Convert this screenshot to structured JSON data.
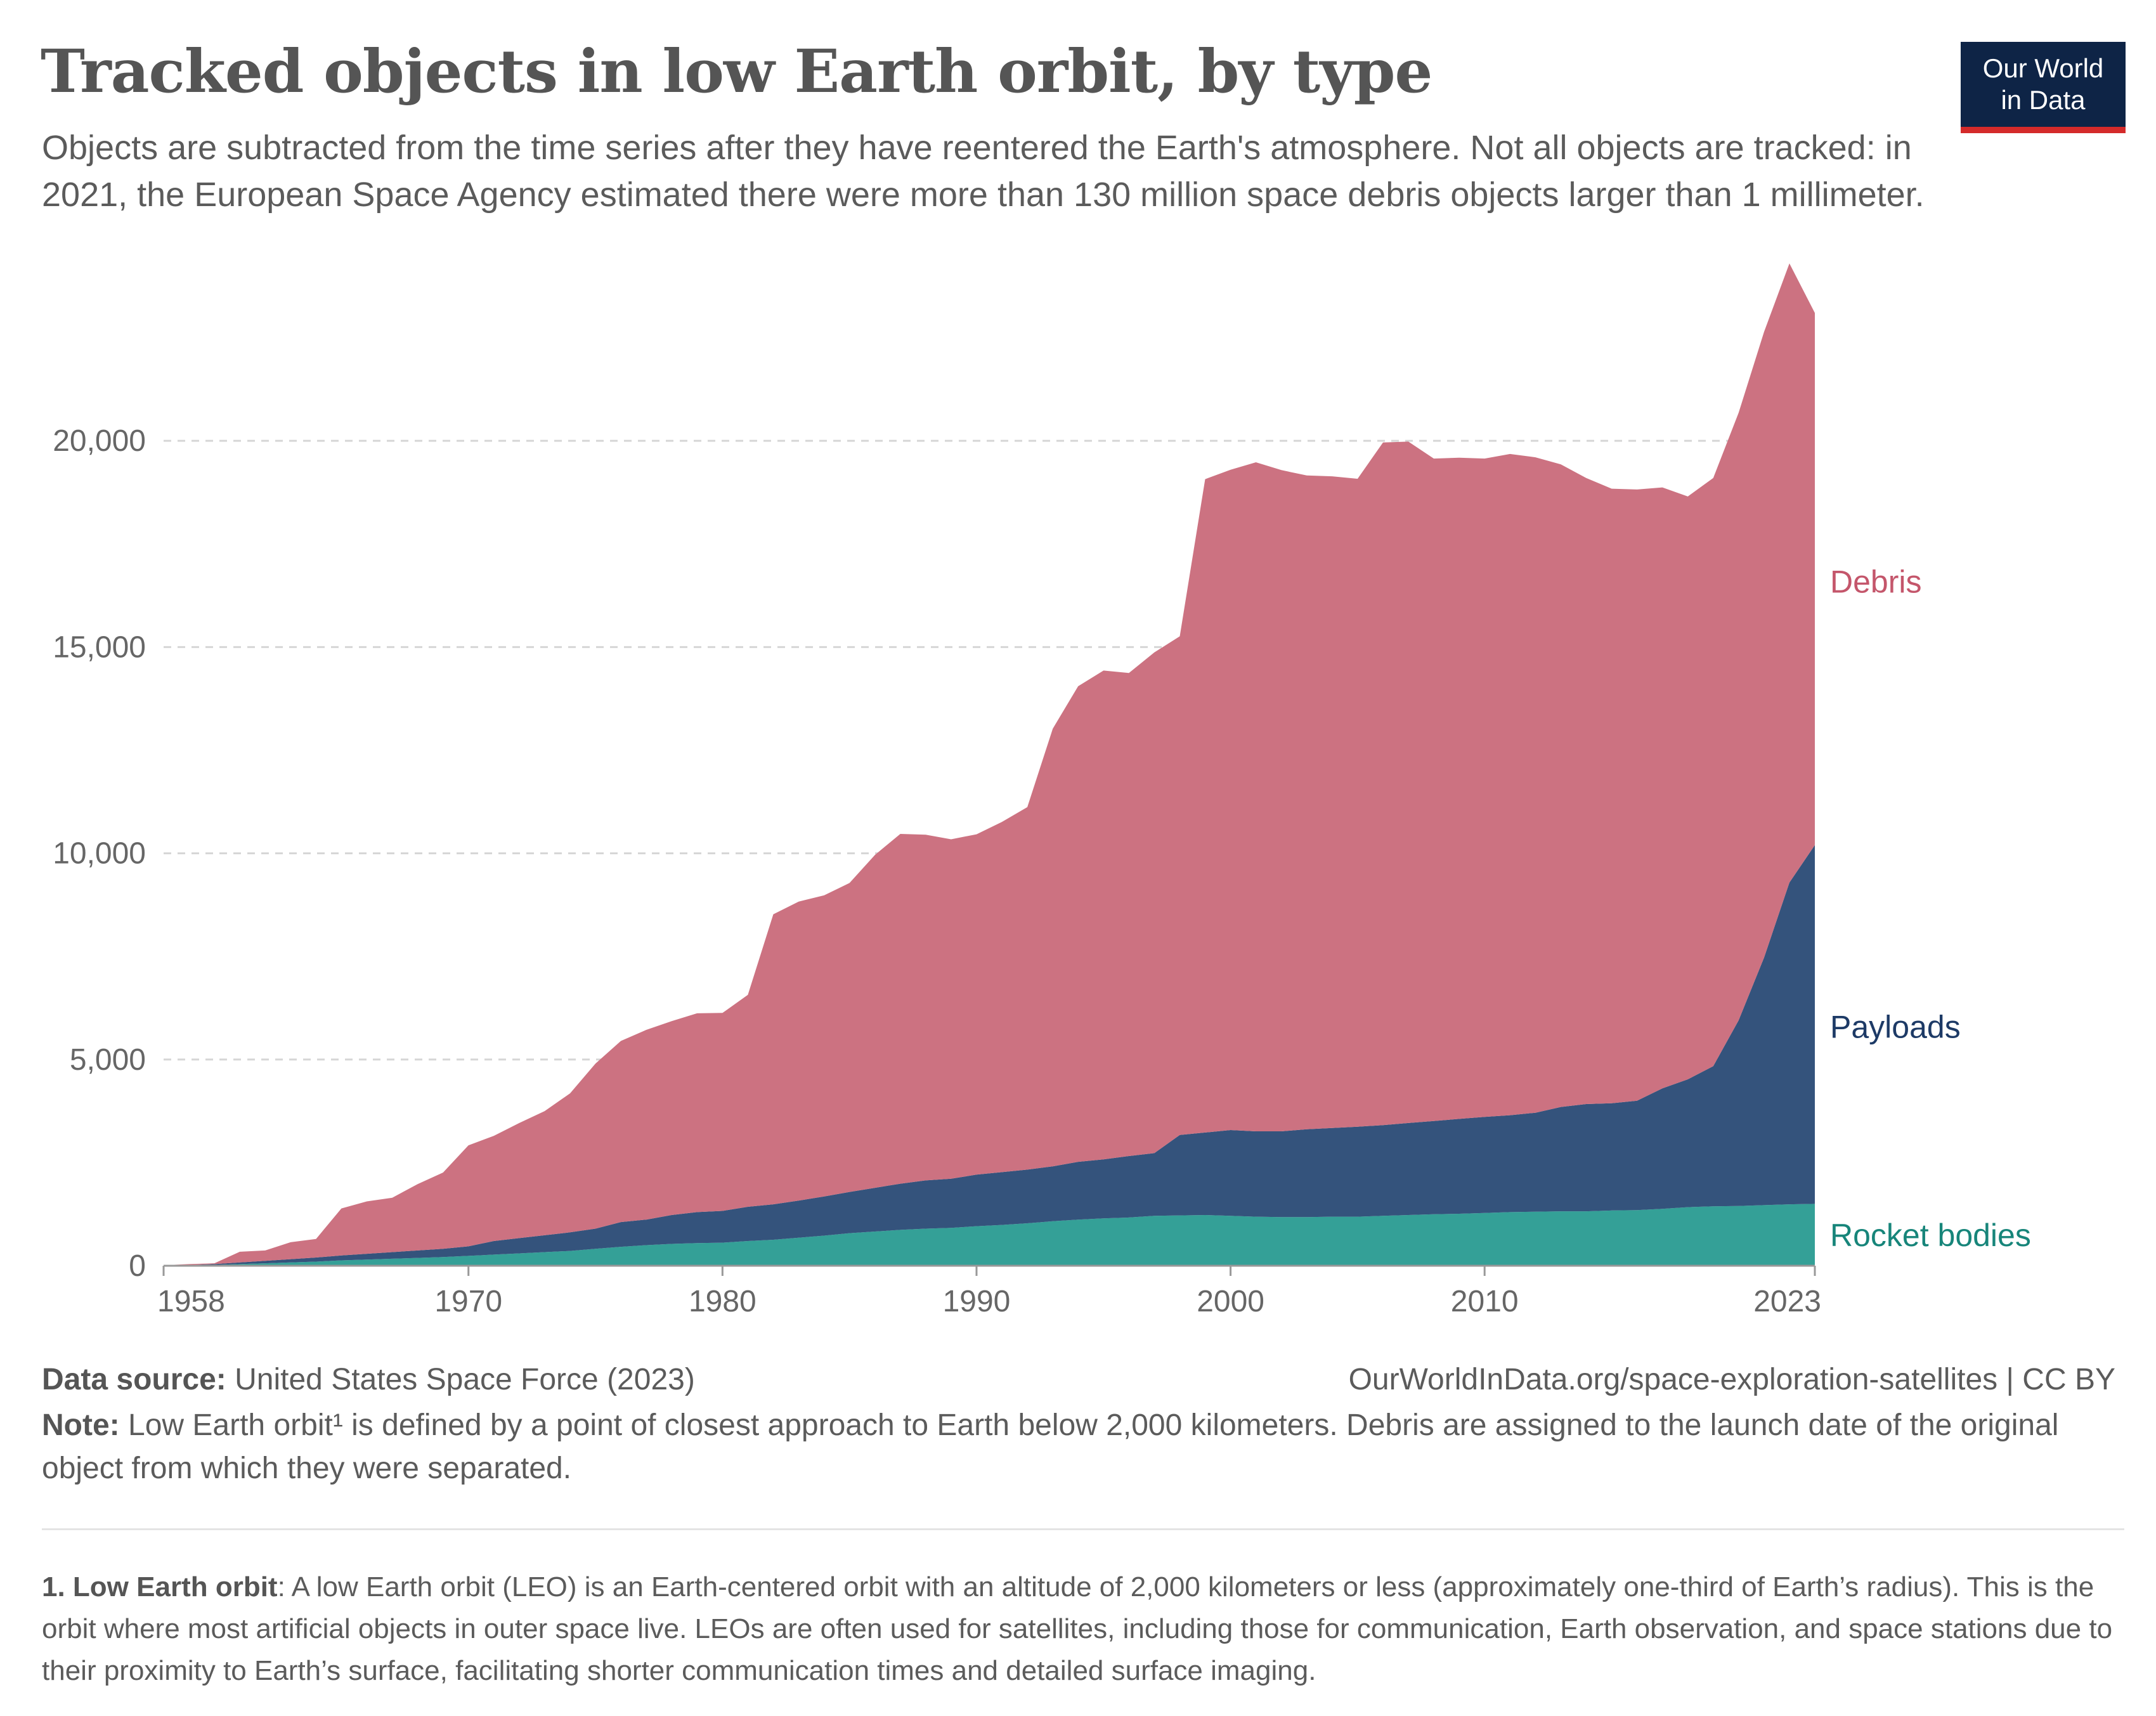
{
  "title": "Tracked objects in low Earth orbit, by type",
  "subtitle": "Objects are subtracted from the time series after they have reentered the Earth's atmosphere. Not all objects are tracked: in 2021, the European Space Agency estimated there were more than 130 million space debris objects larger than 1 millimeter.",
  "logo": {
    "line1": "Our World",
    "line2": "in Data"
  },
  "colors": {
    "debris": "#cc7281",
    "payloads": "#34537c",
    "rocket_bodies": "#34a097",
    "debris_label": "#c4566b",
    "payloads_label": "#1d3a66",
    "rocket_label": "#17857a"
  },
  "chart_data": {
    "type": "area",
    "stacked": true,
    "x": [
      1958,
      1959,
      1960,
      1961,
      1962,
      1963,
      1964,
      1965,
      1966,
      1967,
      1968,
      1969,
      1970,
      1971,
      1972,
      1973,
      1974,
      1975,
      1976,
      1977,
      1978,
      1979,
      1980,
      1981,
      1982,
      1983,
      1984,
      1985,
      1986,
      1987,
      1988,
      1989,
      1990,
      1991,
      1992,
      1993,
      1994,
      1995,
      1996,
      1997,
      1998,
      1999,
      2000,
      2001,
      2002,
      2003,
      2004,
      2005,
      2006,
      2007,
      2008,
      2009,
      2010,
      2011,
      2012,
      2013,
      2014,
      2015,
      2016,
      2017,
      2018,
      2019,
      2020,
      2021,
      2022,
      2023
    ],
    "series": [
      {
        "name": "Rocket bodies",
        "values": [
          5,
          10,
          20,
          40,
          60,
          80,
          100,
          130,
          150,
          170,
          190,
          210,
          240,
          270,
          300,
          330,
          360,
          410,
          460,
          500,
          530,
          550,
          560,
          600,
          630,
          680,
          730,
          790,
          830,
          870,
          900,
          920,
          960,
          990,
          1030,
          1080,
          1120,
          1150,
          1170,
          1210,
          1220,
          1230,
          1210,
          1190,
          1180,
          1180,
          1190,
          1190,
          1210,
          1230,
          1250,
          1260,
          1280,
          1300,
          1310,
          1320,
          1320,
          1340,
          1350,
          1380,
          1420,
          1440,
          1450,
          1470,
          1490,
          1500
        ]
      },
      {
        "name": "Payloads",
        "values": [
          5,
          10,
          20,
          40,
          60,
          80,
          100,
          120,
          140,
          160,
          180,
          200,
          230,
          330,
          370,
          410,
          450,
          490,
          600,
          620,
          700,
          750,
          770,
          830,
          860,
          900,
          950,
          1000,
          1060,
          1120,
          1170,
          1190,
          1250,
          1280,
          1300,
          1330,
          1400,
          1430,
          1490,
          1520,
          1950,
          2000,
          2080,
          2070,
          2080,
          2130,
          2150,
          2180,
          2200,
          2230,
          2260,
          2300,
          2330,
          2350,
          2400,
          2530,
          2600,
          2600,
          2650,
          2920,
          3100,
          3400,
          4500,
          6000,
          7800,
          8700
        ]
      },
      {
        "name": "Debris",
        "values": [
          0,
          20,
          20,
          260,
          250,
          410,
          450,
          1140,
          1270,
          1320,
          1610,
          1850,
          2450,
          2550,
          2790,
          3010,
          3370,
          4000,
          4390,
          4600,
          4700,
          4820,
          4800,
          5140,
          7030,
          7250,
          7300,
          7490,
          8070,
          8480,
          8380,
          8230,
          8250,
          8490,
          8790,
          10610,
          11530,
          11850,
          11710,
          12140,
          12090,
          15840,
          16010,
          16220,
          16030,
          15850,
          15800,
          15710,
          16550,
          16520,
          16060,
          16030,
          15960,
          16030,
          15890,
          15580,
          15180,
          14900,
          14820,
          14570,
          14130,
          14260,
          14730,
          15170,
          15010,
          12900
        ]
      }
    ],
    "ylim": [
      0,
      23000
    ],
    "yticks": [
      0,
      5000,
      10000,
      15000,
      20000
    ],
    "ytick_labels": [
      "0",
      "5,000",
      "10,000",
      "15,000",
      "20,000"
    ],
    "xticks": [
      1958,
      1970,
      1980,
      1990,
      2000,
      2010,
      2023
    ],
    "xtick_labels": [
      "1958",
      "1970",
      "1980",
      "1990",
      "2000",
      "2010",
      "2023"
    ],
    "grid": "horizontal-dashed",
    "legend": "inline-right",
    "series_labels": [
      {
        "name": "Debris",
        "y_value": 16600
      },
      {
        "name": "Payloads",
        "y_value": 5800
      },
      {
        "name": "Rocket bodies",
        "y_value": 750
      }
    ]
  },
  "footer": {
    "source_label": "Data source:",
    "source_text": " United States Space Force (2023)",
    "url": "OurWorldInData.org/space-exploration-satellites | CC BY",
    "note_label": "Note:",
    "note_text": " Low Earth orbit¹ is defined by a point of closest approach to Earth below 2,000 kilometers. Debris are assigned to the launch date of the original object from which they were separated.",
    "footnote_label": "1. Low Earth orbit",
    "footnote_text": ": A low Earth orbit (LEO) is an Earth-centered orbit with an altitude of 2,000 kilometers or less (approximately one-third of Earth’s radius). This is the orbit where most artificial objects in outer space live. LEOs are often used for satellites, including those for communication, Earth observation, and space stations due to their proximity to Earth’s surface, facilitating shorter communication times and detailed surface imaging."
  }
}
